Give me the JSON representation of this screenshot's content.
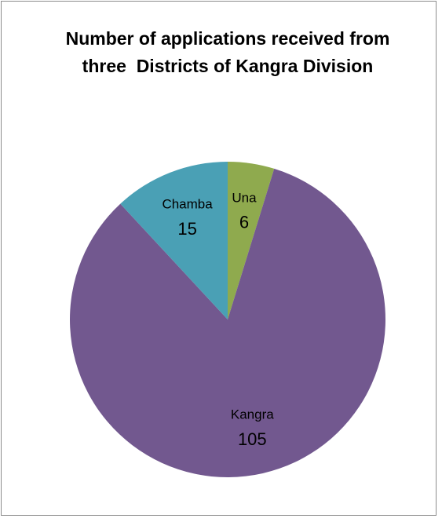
{
  "chart_data": {
    "type": "pie",
    "title": "Number of applications received from three  Districts of Kangra Division",
    "categories": [
      "Una",
      "Kangra",
      "Chamba"
    ],
    "values": [
      6,
      105,
      15
    ],
    "colors": [
      "#8faa4e",
      "#72588f",
      "#4aa0b5"
    ]
  }
}
